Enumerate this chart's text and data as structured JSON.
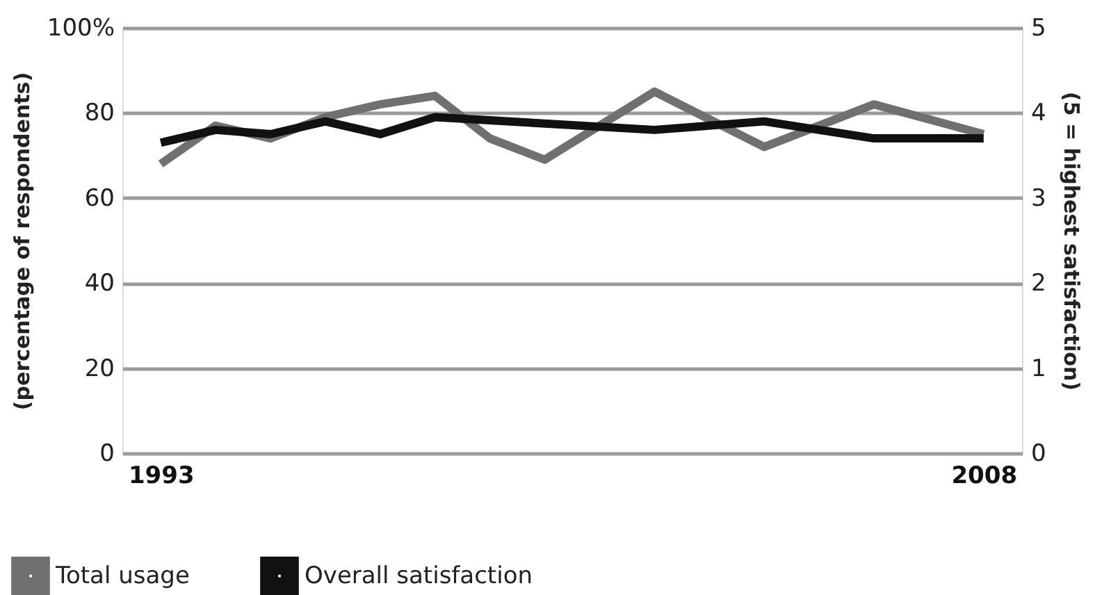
{
  "chart_data": {
    "type": "line",
    "xlabel": null,
    "ylabel": "(percentage of respondents)",
    "y2label": "(5 = highest satisfaction)",
    "xlim": [
      1992.3,
      2008.7
    ],
    "xticks": [
      1993,
      2008
    ],
    "ylim": [
      0,
      100
    ],
    "yticks": [
      0,
      20,
      40,
      60,
      80,
      {
        "value": 100,
        "label": "100%"
      }
    ],
    "y2lim": [
      0,
      5
    ],
    "y2ticks": [
      0,
      1,
      2,
      3,
      4,
      5
    ],
    "grid": "y",
    "legend": "bottom",
    "marker": "none",
    "line_style": "solid",
    "series": [
      {
        "name": "Total usage",
        "color": "#707070",
        "x": [
          1993,
          1994,
          1995,
          1996,
          1997,
          1998,
          1999,
          2000,
          2002,
          2004,
          2006,
          2008
        ],
        "values": [
          68,
          77,
          74,
          79,
          82,
          84,
          74,
          69,
          85,
          72,
          82,
          75
        ]
      },
      {
        "name": "Overall satisfaction",
        "color": "#111111",
        "axis": "y2",
        "x": [
          1993,
          1994,
          1995,
          1996,
          1997,
          1998,
          2002,
          2004,
          2006,
          2008
        ],
        "values": [
          3.65,
          3.8,
          3.75,
          3.9,
          3.75,
          3.95,
          3.8,
          3.9,
          3.7,
          3.7
        ]
      }
    ]
  }
}
